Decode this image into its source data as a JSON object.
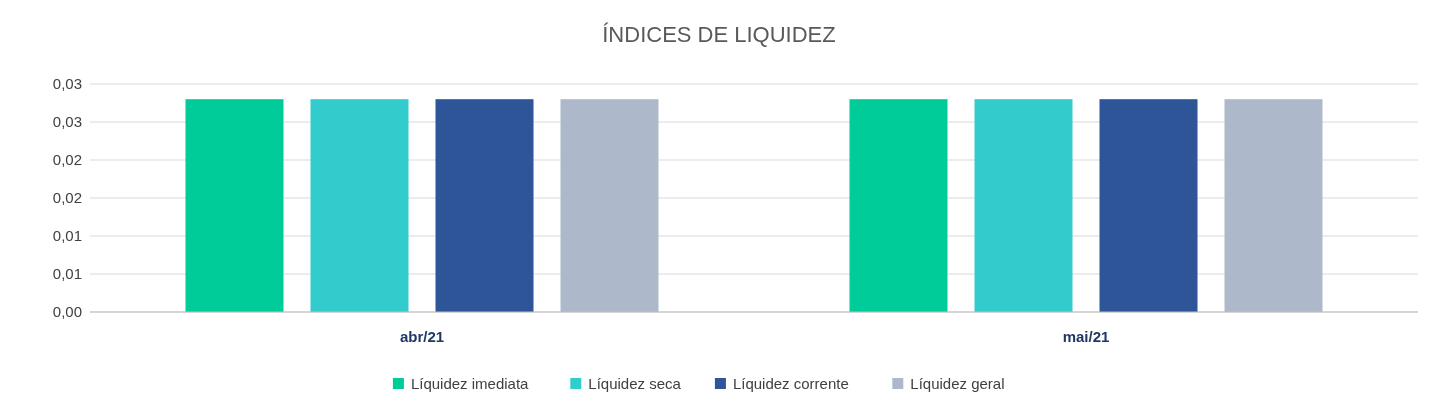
{
  "chart_data": {
    "type": "bar",
    "title": "ÍNDICES DE LIQUIDEZ",
    "categories": [
      "abr/21",
      "mai/21"
    ],
    "series": [
      {
        "name": "Líquidez imediata",
        "color": "#00cc99",
        "values": [
          0.028,
          0.028
        ]
      },
      {
        "name": "Líquidez seca",
        "color": "#33cccc",
        "values": [
          0.028,
          0.028
        ]
      },
      {
        "name": "Líquidez corrente",
        "color": "#2e5597",
        "values": [
          0.028,
          0.028
        ]
      },
      {
        "name": "Líquidez geral",
        "color": "#adb9ca",
        "values": [
          0.028,
          0.028
        ]
      }
    ],
    "ylim": [
      0,
      0.03
    ],
    "yticks": [
      {
        "value": 0,
        "label": "0,00"
      },
      {
        "value": 0.005,
        "label": "0,01"
      },
      {
        "value": 0.01,
        "label": "0,01"
      },
      {
        "value": 0.015,
        "label": "0,02"
      },
      {
        "value": 0.02,
        "label": "0,02"
      },
      {
        "value": 0.025,
        "label": "0,03"
      },
      {
        "value": 0.03,
        "label": "0,03"
      }
    ],
    "grid": "y",
    "legend": "bottom"
  }
}
